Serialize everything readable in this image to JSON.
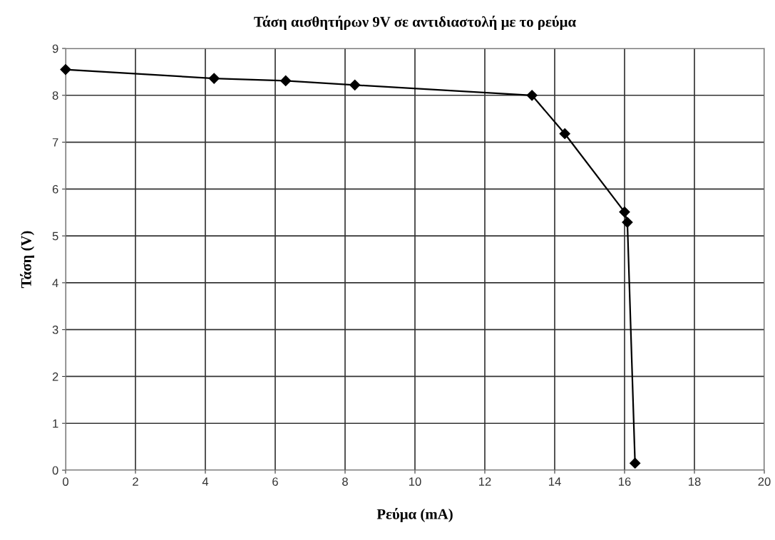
{
  "chart_data": {
    "type": "line",
    "title": "Τάση αισθητήρων 9V σε αντιδιαστολή με το ρεύμα",
    "xlabel": "Ρεύμα (mA)",
    "ylabel": "Τάση (V)",
    "x": [
      0,
      4.25,
      6.3,
      8.28,
      13.35,
      14.29,
      16.0,
      16.08,
      16.3
    ],
    "series": [
      {
        "color": "#000000",
        "values": [
          8.55,
          8.36,
          8.31,
          8.22,
          8.0,
          7.18,
          5.51,
          5.29,
          0.15
        ]
      }
    ],
    "xlim": [
      0,
      20
    ],
    "xticks": [
      0,
      2,
      4,
      6,
      8,
      10,
      12,
      14,
      16,
      18,
      20
    ],
    "ylim": [
      0,
      9
    ],
    "yticks": [
      0,
      1,
      2,
      3,
      4,
      5,
      6,
      7,
      8,
      9
    ],
    "grid": true,
    "marker": "diamond",
    "line_style": "solid",
    "legend": false
  }
}
